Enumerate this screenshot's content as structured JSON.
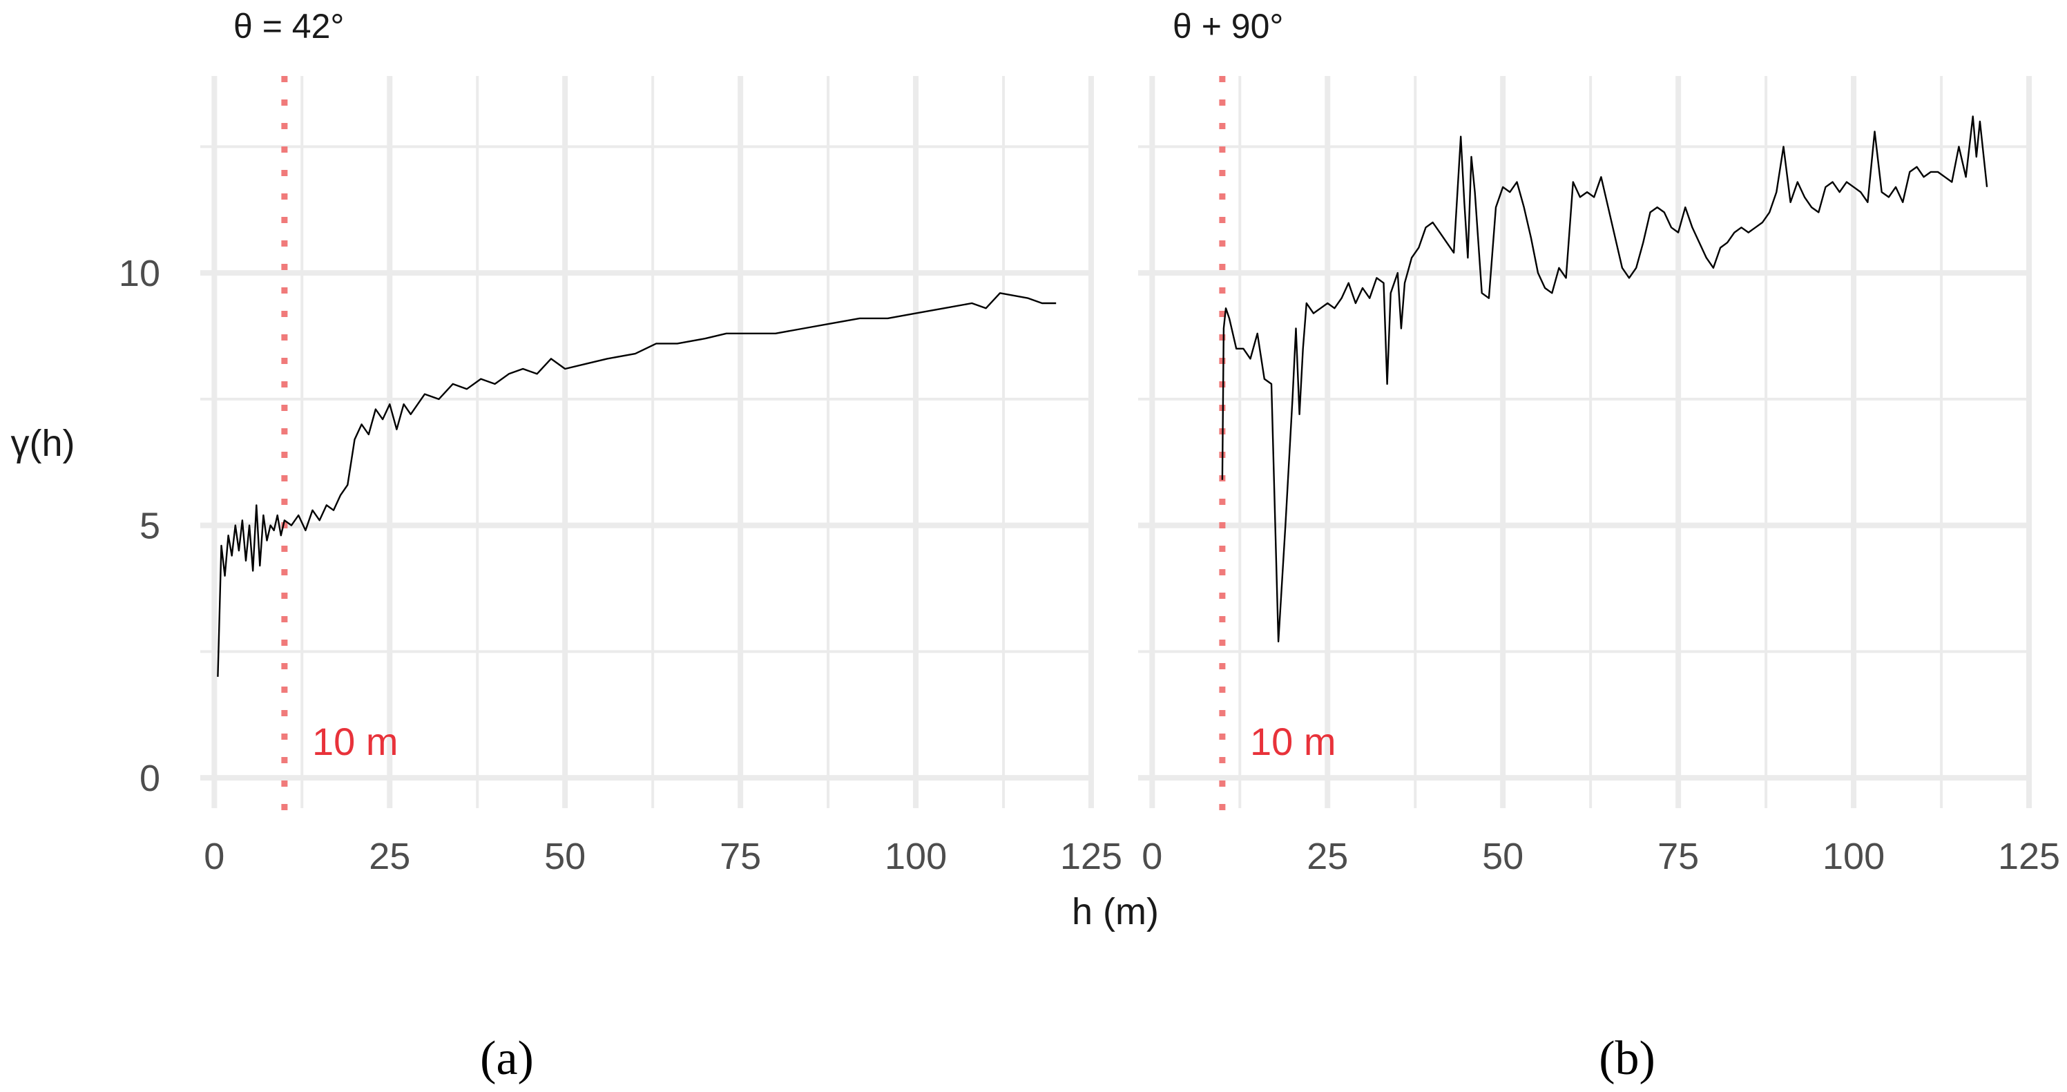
{
  "chart_data": [
    {
      "type": "line",
      "panel": "a",
      "title": "θ = 42°",
      "panel_label": "(a)",
      "xlabel": "h (m)",
      "ylabel": "γ(h)",
      "xlim": [
        -2,
        125
      ],
      "ylim": [
        -0.6,
        13.9
      ],
      "x_ticks": [
        0,
        25,
        50,
        75,
        100,
        125
      ],
      "x_tick_labels": [
        "0",
        "25",
        "50",
        "75",
        "100",
        "125"
      ],
      "y_ticks": [
        0,
        5,
        10
      ],
      "y_tick_labels": [
        "0",
        "5",
        "10"
      ],
      "grid": true,
      "vline": {
        "x": 10,
        "label": "10 m",
        "color": "#f07a7a"
      },
      "series": [
        {
          "color": "#000000",
          "x": [
            0.5,
            1,
            1.5,
            2,
            2.5,
            3,
            3.5,
            4,
            4.5,
            5,
            5.5,
            6,
            6.5,
            7,
            7.5,
            8,
            8.5,
            9,
            9.5,
            10,
            11,
            12,
            13,
            14,
            15,
            16,
            17,
            18,
            19,
            20,
            21,
            22,
            23,
            24,
            25,
            26,
            27,
            28,
            30,
            32,
            34,
            36,
            38,
            40,
            42,
            44,
            46,
            48,
            50,
            53,
            56,
            60,
            63,
            66,
            70,
            73,
            76,
            80,
            84,
            88,
            92,
            96,
            100,
            104,
            108,
            110,
            112,
            116,
            118,
            120
          ],
          "y": [
            2.0,
            4.6,
            4.0,
            4.8,
            4.4,
            5.0,
            4.5,
            5.1,
            4.3,
            5.0,
            4.1,
            5.4,
            4.2,
            5.2,
            4.7,
            5.0,
            4.9,
            5.2,
            4.8,
            5.1,
            5.0,
            5.2,
            4.9,
            5.3,
            5.1,
            5.4,
            5.3,
            5.6,
            5.8,
            6.7,
            7.0,
            6.8,
            7.3,
            7.1,
            7.4,
            6.9,
            7.4,
            7.2,
            7.6,
            7.5,
            7.8,
            7.7,
            7.9,
            7.8,
            8.0,
            8.1,
            8.0,
            8.3,
            8.1,
            8.2,
            8.3,
            8.4,
            8.6,
            8.6,
            8.7,
            8.8,
            8.8,
            8.8,
            8.9,
            9.0,
            9.1,
            9.1,
            9.2,
            9.3,
            9.4,
            9.3,
            9.6,
            9.5,
            9.4,
            9.4
          ]
        }
      ]
    },
    {
      "type": "line",
      "panel": "b",
      "title": "θ + 90°",
      "panel_label": "(b)",
      "xlabel": "h (m)",
      "ylabel": "",
      "xlim": [
        -2,
        125
      ],
      "ylim": [
        -0.6,
        13.9
      ],
      "x_ticks": [
        0,
        25,
        50,
        75,
        100,
        125
      ],
      "x_tick_labels": [
        "0",
        "25",
        "50",
        "75",
        "100",
        "125"
      ],
      "y_ticks": [
        0,
        5,
        10
      ],
      "grid": true,
      "vline": {
        "x": 10,
        "label": "10 m",
        "color": "#f07a7a"
      },
      "series": [
        {
          "color": "#000000",
          "x": [
            10,
            10.2,
            10.5,
            11,
            12,
            13,
            14,
            15,
            16,
            17,
            18,
            19,
            20,
            20.5,
            21,
            21.5,
            22,
            23,
            24,
            25,
            26,
            27,
            28,
            29,
            30,
            31,
            32,
            33,
            33.5,
            34,
            35,
            35.5,
            36,
            37,
            38,
            39,
            40,
            41,
            42,
            43,
            44,
            44.5,
            45,
            45.5,
            46,
            47,
            48,
            49,
            50,
            51,
            52,
            53,
            54,
            55,
            56,
            57,
            58,
            59,
            60,
            61,
            62,
            63,
            64,
            65,
            66,
            67,
            68,
            69,
            70,
            71,
            72,
            73,
            74,
            75,
            76,
            77,
            78,
            79,
            80,
            81,
            82,
            83,
            84,
            85,
            86,
            87,
            88,
            89,
            90,
            91,
            92,
            93,
            94,
            95,
            96,
            97,
            98,
            99,
            100,
            101,
            102,
            103,
            104,
            105,
            106,
            107,
            108,
            109,
            110,
            111,
            112,
            113,
            114,
            115,
            116,
            117,
            117.5,
            118,
            119
          ],
          "y": [
            5.9,
            8.9,
            9.3,
            9.1,
            8.5,
            8.5,
            8.3,
            8.8,
            7.9,
            7.8,
            2.7,
            5.0,
            7.5,
            8.9,
            7.2,
            8.5,
            9.4,
            9.2,
            9.3,
            9.4,
            9.3,
            9.5,
            9.8,
            9.4,
            9.7,
            9.5,
            9.9,
            9.8,
            7.8,
            9.6,
            10.0,
            8.9,
            9.8,
            10.3,
            10.5,
            10.9,
            11.0,
            10.8,
            10.6,
            10.4,
            12.7,
            11.4,
            10.3,
            12.3,
            11.6,
            9.6,
            9.5,
            11.3,
            11.7,
            11.6,
            11.8,
            11.3,
            10.7,
            10.0,
            9.7,
            9.6,
            10.1,
            9.9,
            11.8,
            11.5,
            11.6,
            11.5,
            11.9,
            11.3,
            10.7,
            10.1,
            9.9,
            10.1,
            10.6,
            11.2,
            11.3,
            11.2,
            10.9,
            10.8,
            11.3,
            10.9,
            10.6,
            10.3,
            10.1,
            10.5,
            10.6,
            10.8,
            10.9,
            10.8,
            10.9,
            11.0,
            11.2,
            11.6,
            12.5,
            11.4,
            11.8,
            11.5,
            11.3,
            11.2,
            11.7,
            11.8,
            11.6,
            11.8,
            11.7,
            11.6,
            11.4,
            12.8,
            11.6,
            11.5,
            11.7,
            11.4,
            12.0,
            12.1,
            11.9,
            12.0,
            12.0,
            11.9,
            11.8,
            12.5,
            11.9,
            13.1,
            12.3,
            13.0,
            11.7
          ]
        }
      ]
    }
  ]
}
